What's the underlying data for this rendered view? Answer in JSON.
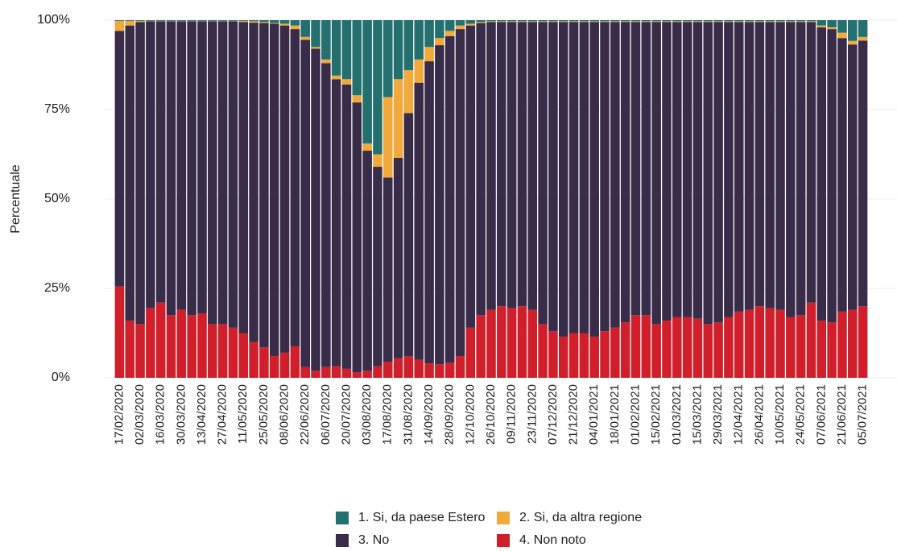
{
  "chart_data": {
    "type": "stacked-bar",
    "y_label": "Percentuale",
    "categories": [
      "17/02/2020",
      null,
      "02/03/2020",
      null,
      "16/03/2020",
      null,
      "30/03/2020",
      null,
      "13/04/2020",
      null,
      "27/04/2020",
      null,
      "11/05/2020",
      null,
      "25/05/2020",
      null,
      "08/06/2020",
      null,
      "22/06/2020",
      null,
      "06/07/2020",
      null,
      "20/07/2020",
      null,
      "03/08/2020",
      null,
      "17/08/2020",
      null,
      "31/08/2020",
      null,
      "14/09/2020",
      null,
      "28/09/2020",
      null,
      "12/10/2020",
      null,
      "26/10/2020",
      null,
      "09/11/2020",
      null,
      "23/11/2020",
      null,
      "07/12/2020",
      null,
      "21/12/2020",
      null,
      "04/01/2021",
      null,
      "18/01/2021",
      null,
      "01/02/2021",
      null,
      "15/02/2021",
      null,
      "01/03/2021",
      null,
      "15/03/2021",
      null,
      "29/03/2021",
      null,
      "12/04/2021",
      null,
      "26/04/2021",
      null,
      "10/05/2021",
      null,
      "24/05/2021",
      null,
      "07/06/2021",
      null,
      "21/06/2021",
      null,
      "05/07/2021"
    ],
    "series": [
      {
        "name": "1. Si, da paese Estero",
        "color": "#24706f",
        "values": [
          0.2,
          0.2,
          0.2,
          0.2,
          0.2,
          0.2,
          0.2,
          0.2,
          0.2,
          0.2,
          0.2,
          0.2,
          0.2,
          0.3,
          0.5,
          0.8,
          1,
          1.5,
          4.7,
          7.5,
          11,
          15.5,
          16.5,
          21,
          34.5,
          37.5,
          21.5,
          16.5,
          14,
          11,
          7.5,
          5,
          3,
          1.5,
          1,
          0.5,
          0.3,
          0.3,
          0.3,
          0.3,
          0.3,
          0.3,
          0.3,
          0.3,
          0.3,
          0.3,
          0.3,
          0.3,
          0.3,
          0.3,
          0.3,
          0.3,
          0.3,
          0.3,
          0.3,
          0.3,
          0.3,
          0.3,
          0.3,
          0.3,
          0.3,
          0.3,
          0.3,
          0.3,
          0.3,
          0.3,
          0.3,
          0.3,
          1.5,
          2,
          3.5,
          5.8,
          4.7
        ]
      },
      {
        "name": "2. Si, da altra regione",
        "color": "#f2a93b",
        "values": [
          2.8,
          1.3,
          0.3,
          0.1,
          0.1,
          0.1,
          0.1,
          0.1,
          0.1,
          0.1,
          0.1,
          0.1,
          0.3,
          0.4,
          0.3,
          0.2,
          0.5,
          1,
          0.8,
          0.5,
          1,
          1,
          1.5,
          2,
          2,
          3.5,
          22.5,
          22,
          12,
          6.5,
          4,
          2,
          1.5,
          1,
          0.5,
          0.3,
          0.2,
          0.2,
          0.2,
          0.2,
          0.2,
          0.2,
          0.2,
          0.2,
          0.2,
          0.2,
          0.2,
          0.2,
          0.2,
          0.2,
          0.2,
          0.2,
          0.2,
          0.2,
          0.2,
          0.2,
          0.2,
          0.2,
          0.2,
          0.2,
          0.2,
          0.2,
          0.2,
          0.2,
          0.2,
          0.2,
          0.2,
          0.2,
          0.5,
          0.5,
          1.5,
          1,
          1
        ]
      },
      {
        "name": "3. No",
        "color": "#382c48",
        "values": [
          71.5,
          82.5,
          84.5,
          80.2,
          78.7,
          82.2,
          80.7,
          82.2,
          81.7,
          84.7,
          84.7,
          85.7,
          87,
          89.3,
          90.7,
          93,
          91.5,
          88.7,
          91.5,
          90,
          85,
          80.3,
          79.5,
          75.5,
          61.5,
          55.8,
          51.5,
          56,
          68,
          77.5,
          84.5,
          89.2,
          91.3,
          91.5,
          84.5,
          81.7,
          80.5,
          79.5,
          80,
          79.5,
          80.5,
          84.5,
          86.5,
          88,
          87,
          87,
          88,
          86.5,
          85.5,
          84,
          82,
          82,
          84.5,
          83.5,
          82.5,
          82.5,
          83,
          84.5,
          84,
          82.5,
          81,
          80.5,
          79.5,
          80,
          80.5,
          82.5,
          82,
          78.5,
          82,
          82,
          76.5,
          74.2,
          74.3
        ]
      },
      {
        "name": "4. Non noto",
        "color": "#d01f2a",
        "values": [
          25.5,
          16,
          15,
          19.5,
          21,
          17.5,
          19,
          17.5,
          18,
          15,
          15,
          14,
          12.5,
          10,
          8.5,
          6,
          7,
          8.8,
          3,
          2,
          3,
          3.2,
          2.5,
          1.5,
          2,
          3.2,
          4.5,
          5.5,
          6,
          5,
          4,
          3.8,
          4.2,
          6,
          14,
          17.5,
          19,
          20,
          19.5,
          20,
          19,
          15,
          13,
          11.5,
          12.5,
          12.5,
          11.5,
          13,
          14,
          15.5,
          17.5,
          17.5,
          15,
          16,
          17,
          17,
          16.5,
          15,
          15.5,
          17,
          18.5,
          19,
          20,
          19.5,
          19,
          17,
          17.5,
          21,
          16,
          15.5,
          18.5,
          19,
          20
        ]
      }
    ],
    "ylim": [
      0,
      100
    ],
    "yticks": [
      {
        "value": 0,
        "label": "0%"
      },
      {
        "value": 25,
        "label": "25%"
      },
      {
        "value": 50,
        "label": "50%"
      },
      {
        "value": 75,
        "label": "75%"
      },
      {
        "value": 100,
        "label": "100%"
      }
    ],
    "grid": true,
    "legend": "bottom"
  }
}
